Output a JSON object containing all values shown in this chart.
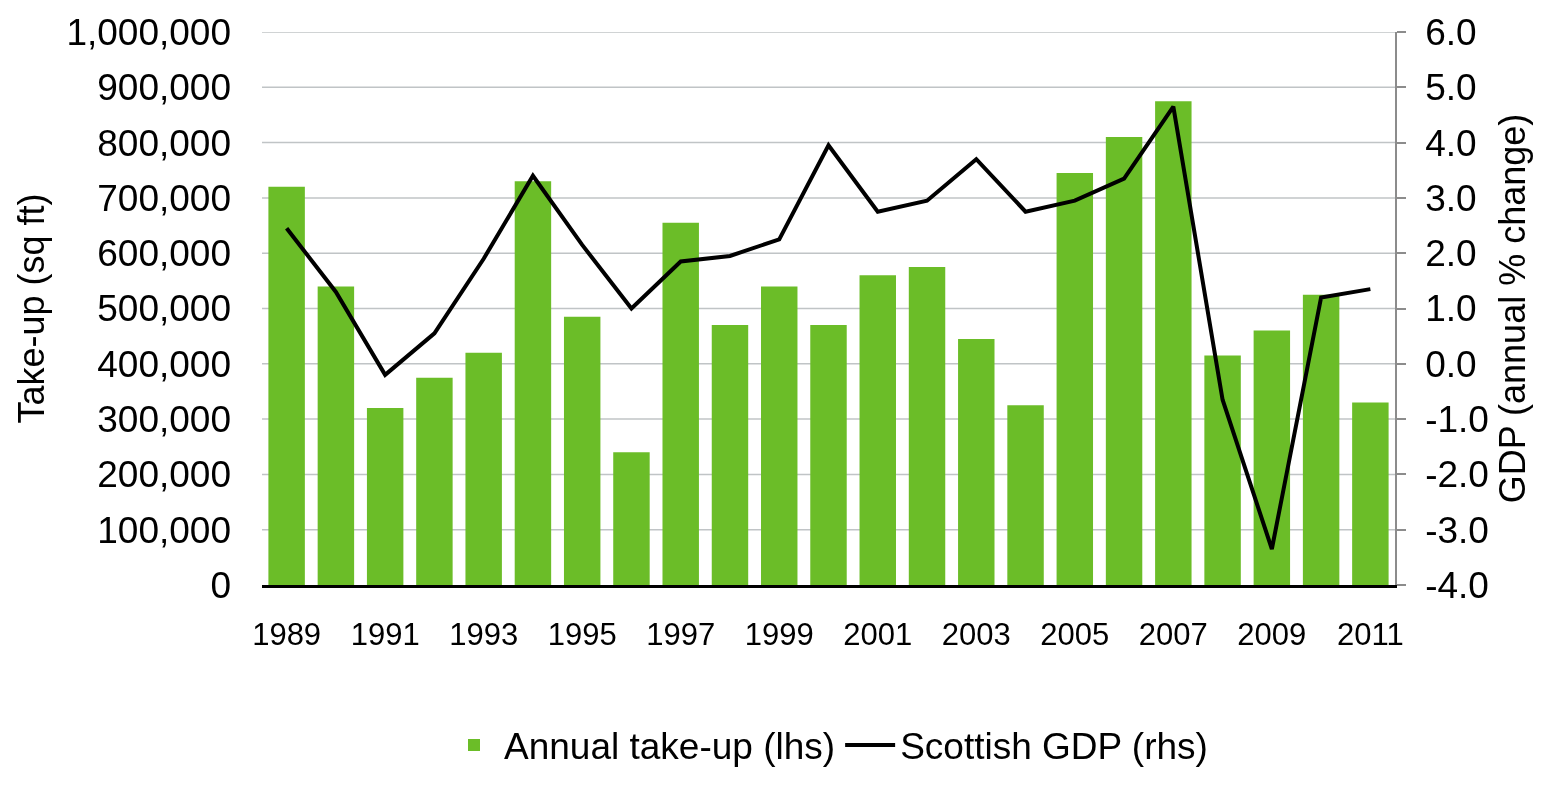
{
  "chart_data": {
    "type": "bar",
    "categories": [
      "1989",
      null,
      "1991",
      null,
      "1993",
      null,
      "1995",
      null,
      "1997",
      null,
      "1999",
      null,
      "2001",
      null,
      "2003",
      null,
      "2005",
      null,
      "2007",
      null,
      "2009",
      null,
      "2011"
    ],
    "ylabel": "Take-up (sq ft)",
    "y2label": "GDP (annual % change)",
    "series": [
      {
        "name": "Annual take-up (lhs)",
        "color": "#6bbd28",
        "values": [
          720000,
          540000,
          320000,
          375000,
          420000,
          730000,
          485000,
          240000,
          655000,
          470000,
          540000,
          470000,
          560000,
          575000,
          445000,
          325000,
          745000,
          810000,
          875000,
          415000,
          460000,
          525000,
          330000
        ]
      },
      {
        "name": "Scottish GDP (rhs)",
        "type": "line",
        "axis": "y2",
        "color": "#000000",
        "values": [
          2.45,
          1.3,
          -0.2,
          0.55,
          1.9,
          3.4,
          2.15,
          1.0,
          1.85,
          1.95,
          2.25,
          3.95,
          2.75,
          2.95,
          3.7,
          2.75,
          2.95,
          3.35,
          4.65,
          -0.65,
          -3.35,
          1.2,
          1.35
        ]
      }
    ],
    "ylim": [
      0,
      1000000
    ],
    "yticks": [
      0,
      {
        "value": 100000,
        "label": "100,000"
      },
      {
        "value": 200000,
        "label": "200,000"
      },
      {
        "value": 300000,
        "label": "300,000"
      },
      {
        "value": 400000,
        "label": "400,000"
      },
      {
        "value": 500000,
        "label": "500,000"
      },
      {
        "value": 600000,
        "label": "600,000"
      },
      {
        "value": 700000,
        "label": "700,000"
      },
      {
        "value": 800000,
        "label": "800,000"
      },
      {
        "value": 900000,
        "label": "900,000"
      },
      {
        "value": 1000000,
        "label": "1,000,000"
      }
    ],
    "y2lim": [
      -4,
      6
    ],
    "y2ticks": [
      {
        "value": -4,
        "label": "-4.0"
      },
      {
        "value": -3,
        "label": "-3.0"
      },
      {
        "value": -2,
        "label": "-2.0"
      },
      {
        "value": -1,
        "label": "-1.0"
      },
      {
        "value": 0,
        "label": "0.0"
      },
      {
        "value": 1,
        "label": "1.0"
      },
      {
        "value": 2,
        "label": "2.0"
      },
      {
        "value": 3,
        "label": "3.0"
      },
      {
        "value": 4,
        "label": "4.0"
      },
      {
        "value": 5,
        "label": "5.0"
      },
      {
        "value": 6,
        "label": "6.0"
      }
    ],
    "grid": "y",
    "legend": "bottom"
  }
}
